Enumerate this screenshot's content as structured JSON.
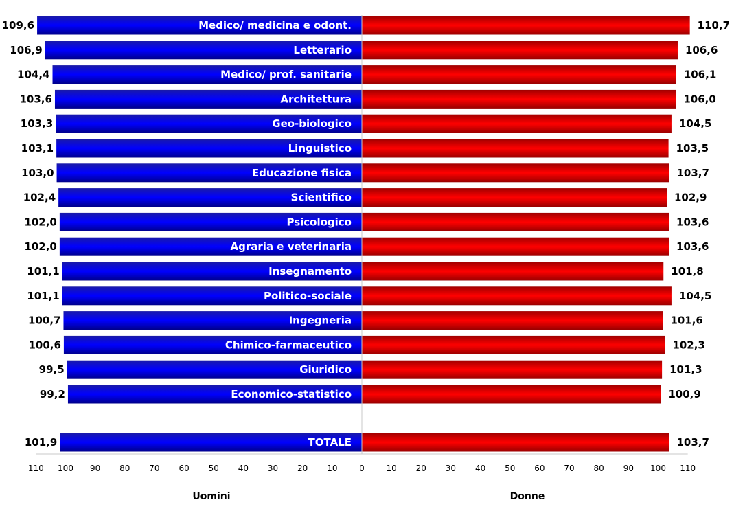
{
  "chart_data": {
    "type": "bar",
    "orientation": "horizontal-butterfly",
    "categories": [
      "Medico/ medicina e odont.",
      "Letterario",
      "Medico/ prof. sanitarie",
      "Architettura",
      "Geo-biologico",
      "Linguistico",
      "Educazione fisica",
      "Scientifico",
      "Psicologico",
      "Agraria e veterinaria",
      "Insegnamento",
      "Politico-sociale",
      "Ingegneria",
      "Chimico-farmaceutico",
      "Giuridico",
      "Economico-statistico"
    ],
    "total_category": "TOTALE",
    "series": [
      {
        "name": "Uomini",
        "side": "left",
        "color": "#0000c8",
        "values": [
          109.6,
          106.9,
          104.4,
          103.6,
          103.3,
          103.1,
          103.0,
          102.4,
          102.0,
          102.0,
          101.1,
          101.1,
          100.7,
          100.6,
          99.5,
          99.2
        ],
        "total": 101.9,
        "value_labels": [
          "109,6",
          "106,9",
          "104,4",
          "103,6",
          "103,3",
          "103,1",
          "103,0",
          "102,4",
          "102,0",
          "102,0",
          "101,1",
          "101,1",
          "100,7",
          "100,6",
          "99,5",
          "99,2"
        ],
        "total_label": "101,9"
      },
      {
        "name": "Donne",
        "side": "right",
        "color": "#e60000",
        "values": [
          110.7,
          106.6,
          106.1,
          106.0,
          104.5,
          103.5,
          103.7,
          102.9,
          103.6,
          103.6,
          101.8,
          104.5,
          101.6,
          102.3,
          101.3,
          100.9
        ],
        "total": 103.7,
        "value_labels": [
          "110,7",
          "106,6",
          "106,1",
          "106,0",
          "104,5",
          "103,5",
          "103,7",
          "102,9",
          "103,6",
          "103,6",
          "101,8",
          "104,5",
          "101,6",
          "102,3",
          "101,3",
          "100,9"
        ],
        "total_label": "103,7"
      }
    ],
    "xlim": [
      0,
      110
    ],
    "tick_labels_left": [
      "110",
      "100",
      "90",
      "80",
      "70",
      "60",
      "50",
      "40",
      "30",
      "20",
      "10",
      "0"
    ],
    "tick_labels_right": [
      "10",
      "20",
      "30",
      "40",
      "50",
      "60",
      "70",
      "80",
      "90",
      "100",
      "110"
    ],
    "xlabel_left": "Uomini",
    "xlabel_right": "Donne",
    "title": "",
    "grid": false,
    "legend": "none"
  }
}
